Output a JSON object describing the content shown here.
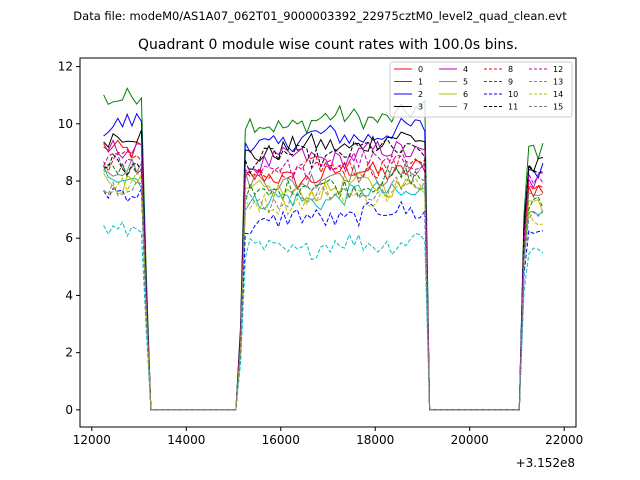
{
  "chart_data": {
    "type": "line",
    "suptitle": "Data file: modeM0/AS1A07_062T01_9000003392_22975cztM0_level2_quad_clean.evt",
    "title": "Quadrant 0 module wise count rates with 100.0s bins.",
    "xlabel": "",
    "ylabel": "",
    "x_offset_label": "+3.152e8",
    "xlim": [
      11750,
      22250
    ],
    "ylim": [
      -0.6,
      12.3
    ],
    "x_ticks": [
      12000,
      14000,
      16000,
      18000,
      20000,
      22000
    ],
    "y_ticks": [
      0,
      2,
      4,
      6,
      8,
      10,
      12
    ],
    "grid": false,
    "legend_position": "top-right",
    "segments": [
      {
        "start": 12250,
        "end": 13050
      },
      {
        "start": 15250,
        "end": 19050
      },
      {
        "start": 21250,
        "end": 21550
      }
    ],
    "gaps": [
      {
        "start": 13250,
        "end": 15050
      },
      {
        "start": 19150,
        "end": 21050
      }
    ],
    "series": [
      {
        "name": "0",
        "color": "#ff0000",
        "dash": "solid",
        "levels": [
          9.2,
          8.0,
          7.6
        ]
      },
      {
        "name": "1",
        "color": "#008000",
        "dash": "solid",
        "levels": [
          11.0,
          9.9,
          9.1
        ]
      },
      {
        "name": "2",
        "color": "#0000ff",
        "dash": "solid",
        "levels": [
          10.0,
          9.3,
          8.5
        ]
      },
      {
        "name": "3",
        "color": "#000000",
        "dash": "solid",
        "levels": [
          9.5,
          9.0,
          8.6
        ]
      },
      {
        "name": "4",
        "color": "#bf00bf",
        "dash": "solid",
        "levels": [
          9.0,
          8.6,
          8.0
        ]
      },
      {
        "name": "5",
        "color": "#00bfbf",
        "dash": "solid",
        "levels": [
          8.2,
          7.2,
          7.0
        ]
      },
      {
        "name": "6",
        "color": "#bfbf00",
        "dash": "solid",
        "levels": [
          8.0,
          7.5,
          7.1
        ]
      },
      {
        "name": "7",
        "color": "#808080",
        "dash": "solid",
        "levels": [
          8.6,
          7.9,
          7.5
        ]
      },
      {
        "name": "8",
        "color": "#ff0000",
        "dash": "dashed",
        "levels": [
          8.8,
          8.2,
          7.8
        ]
      },
      {
        "name": "9",
        "color": "#008000",
        "dash": "dashed",
        "levels": [
          8.3,
          7.6,
          7.3
        ]
      },
      {
        "name": "10",
        "color": "#0000ff",
        "dash": "dashed",
        "levels": [
          7.5,
          6.5,
          6.3
        ]
      },
      {
        "name": "11",
        "color": "#000000",
        "dash": "dashed",
        "levels": [
          8.5,
          8.7,
          8.2
        ]
      },
      {
        "name": "12",
        "color": "#bf00bf",
        "dash": "dashed",
        "levels": [
          8.7,
          8.3,
          7.9
        ]
      },
      {
        "name": "13",
        "color": "#00bfbf",
        "dash": "dashed",
        "levels": [
          6.4,
          5.5,
          5.5
        ]
      },
      {
        "name": "14",
        "color": "#bfbf00",
        "dash": "dashed",
        "levels": [
          7.9,
          7.2,
          6.9
        ]
      },
      {
        "name": "15",
        "color": "#808080",
        "dash": "dashed",
        "levels": [
          7.8,
          7.3,
          7.0
        ]
      }
    ]
  }
}
